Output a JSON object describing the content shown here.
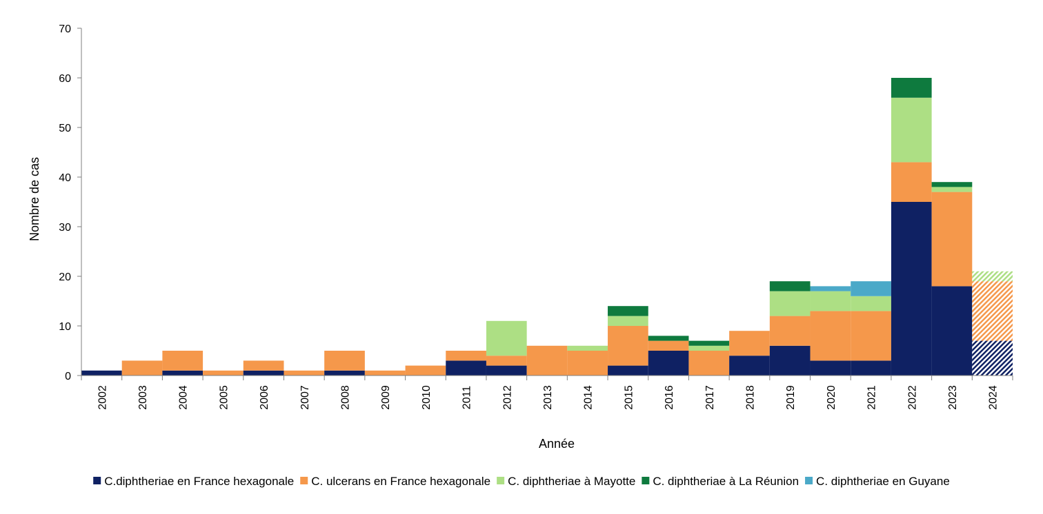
{
  "chart_data": {
    "type": "bar",
    "stacked": true,
    "categories": [
      "2002",
      "2003",
      "2004",
      "2005",
      "2006",
      "2007",
      "2008",
      "2009",
      "2010",
      "2011",
      "2012",
      "2013",
      "2014",
      "2015",
      "2016",
      "2017",
      "2018",
      "2019",
      "2020",
      "2021",
      "2022",
      "2023",
      "2024"
    ],
    "series": [
      {
        "name": "C.diphtheriae en France hexagonale",
        "color": "#0f2163",
        "values": [
          1,
          0,
          1,
          0,
          1,
          0,
          1,
          0,
          0,
          3,
          2,
          0,
          0,
          2,
          5,
          0,
          4,
          6,
          3,
          3,
          35,
          18,
          7
        ]
      },
      {
        "name": "C. ulcerans en France hexagonale",
        "color": "#f5984b",
        "values": [
          0,
          3,
          4,
          1,
          2,
          1,
          4,
          1,
          2,
          2,
          2,
          6,
          5,
          8,
          2,
          5,
          5,
          6,
          10,
          10,
          8,
          19,
          12
        ]
      },
      {
        "name": "C. diphtheriae à Mayotte",
        "color": "#addf84",
        "values": [
          0,
          0,
          0,
          0,
          0,
          0,
          0,
          0,
          0,
          0,
          7,
          0,
          1,
          2,
          0,
          1,
          0,
          5,
          4,
          3,
          13,
          1,
          2
        ]
      },
      {
        "name": "C. diphtheriae à La Réunion",
        "color": "#0e7a3e",
        "values": [
          0,
          0,
          0,
          0,
          0,
          0,
          0,
          0,
          0,
          0,
          0,
          0,
          0,
          2,
          1,
          1,
          0,
          2,
          0,
          0,
          4,
          1,
          0
        ]
      },
      {
        "name": "C. diphtheriae en Guyane",
        "color": "#4ba9c8",
        "values": [
          0,
          0,
          0,
          0,
          0,
          0,
          0,
          0,
          0,
          0,
          0,
          0,
          0,
          0,
          0,
          0,
          0,
          0,
          1,
          3,
          0,
          0,
          0
        ]
      }
    ],
    "hatched_categories": [
      "2024"
    ],
    "xlabel": "Année",
    "ylabel": "Nombre de cas",
    "ylim": [
      0,
      70
    ],
    "yticks": [
      0,
      10,
      20,
      30,
      40,
      50,
      60,
      70
    ],
    "grid": false,
    "legend_position": "bottom"
  }
}
